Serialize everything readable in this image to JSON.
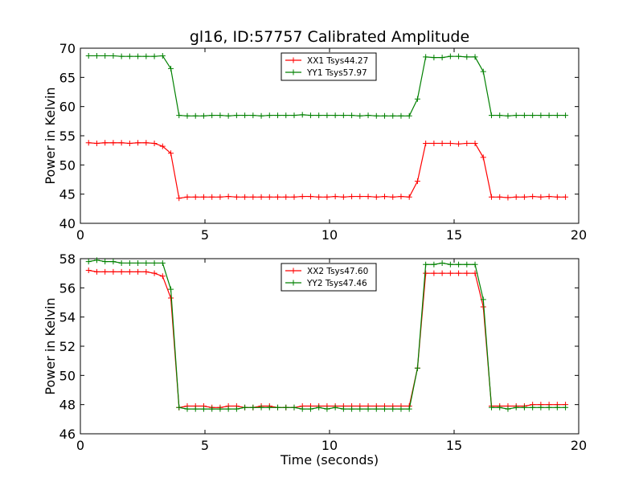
{
  "figure": {
    "title": "gl16, ID:57757 Calibrated Amplitude"
  },
  "colors": {
    "xx": "#ff0000",
    "yy": "#008000",
    "axis": "#000000",
    "background": "#ffffff"
  },
  "chart_data": [
    {
      "type": "line",
      "title": "gl16, ID:57757 Calibrated Amplitude",
      "xlabel": "",
      "ylabel": "Power in Kelvin",
      "xlim": [
        0,
        20
      ],
      "ylim": [
        40,
        70
      ],
      "xticks": [
        "0",
        "5",
        "10",
        "15",
        "20"
      ],
      "yticks": [
        "40",
        "45",
        "50",
        "55",
        "60",
        "65",
        "70"
      ],
      "grid": false,
      "legend_position": "top-center",
      "x": [
        0.33,
        0.66,
        0.99,
        1.32,
        1.65,
        1.98,
        2.31,
        2.64,
        2.97,
        3.3,
        3.63,
        3.96,
        4.29,
        4.62,
        4.95,
        5.28,
        5.61,
        5.94,
        6.27,
        6.6,
        6.93,
        7.26,
        7.59,
        7.92,
        8.25,
        8.58,
        8.91,
        9.24,
        9.57,
        9.9,
        10.23,
        10.56,
        10.89,
        11.22,
        11.55,
        11.88,
        12.21,
        12.54,
        12.87,
        13.2,
        13.53,
        13.86,
        14.19,
        14.52,
        14.85,
        15.18,
        15.51,
        15.84,
        16.17,
        16.5,
        16.83,
        17.16,
        17.49,
        17.82,
        18.15,
        18.48,
        18.81,
        19.14,
        19.47
      ],
      "series": [
        {
          "name": "XX1 Tsys44.27",
          "color": "#ff0000",
          "values": [
            53.8,
            53.7,
            53.8,
            53.8,
            53.8,
            53.7,
            53.8,
            53.8,
            53.7,
            53.2,
            52.0,
            44.3,
            44.5,
            44.5,
            44.5,
            44.5,
            44.5,
            44.6,
            44.5,
            44.5,
            44.5,
            44.5,
            44.5,
            44.5,
            44.5,
            44.5,
            44.6,
            44.6,
            44.5,
            44.5,
            44.6,
            44.5,
            44.6,
            44.6,
            44.6,
            44.5,
            44.6,
            44.5,
            44.6,
            44.5,
            47.2,
            53.7,
            53.7,
            53.7,
            53.7,
            53.6,
            53.7,
            53.7,
            51.3,
            44.5,
            44.5,
            44.4,
            44.5,
            44.5,
            44.6,
            44.5,
            44.6,
            44.5,
            44.5
          ]
        },
        {
          "name": "YY1 Tsys57.97",
          "color": "#008000",
          "values": [
            68.7,
            68.7,
            68.7,
            68.7,
            68.6,
            68.6,
            68.6,
            68.6,
            68.6,
            68.7,
            66.5,
            58.5,
            58.4,
            58.4,
            58.4,
            58.5,
            58.5,
            58.4,
            58.5,
            58.5,
            58.5,
            58.4,
            58.5,
            58.5,
            58.5,
            58.5,
            58.6,
            58.5,
            58.5,
            58.5,
            58.5,
            58.5,
            58.5,
            58.4,
            58.5,
            58.4,
            58.4,
            58.4,
            58.4,
            58.4,
            61.3,
            68.5,
            68.4,
            68.4,
            68.6,
            68.6,
            68.5,
            68.5,
            66.0,
            58.5,
            58.5,
            58.4,
            58.5,
            58.5,
            58.5,
            58.5,
            58.5,
            58.5,
            58.5
          ]
        }
      ]
    },
    {
      "type": "line",
      "title": "",
      "xlabel": "Time (seconds)",
      "ylabel": "Power in Kelvin",
      "xlim": [
        0,
        20
      ],
      "ylim": [
        46,
        58
      ],
      "xticks": [
        "0",
        "5",
        "10",
        "15",
        "20"
      ],
      "yticks": [
        "46",
        "48",
        "50",
        "52",
        "54",
        "56",
        "58"
      ],
      "grid": false,
      "legend_position": "top-center",
      "x": [
        0.33,
        0.66,
        0.99,
        1.32,
        1.65,
        1.98,
        2.31,
        2.64,
        2.97,
        3.3,
        3.63,
        3.96,
        4.29,
        4.62,
        4.95,
        5.28,
        5.61,
        5.94,
        6.27,
        6.6,
        6.93,
        7.26,
        7.59,
        7.92,
        8.25,
        8.58,
        8.91,
        9.24,
        9.57,
        9.9,
        10.23,
        10.56,
        10.89,
        11.22,
        11.55,
        11.88,
        12.21,
        12.54,
        12.87,
        13.2,
        13.53,
        13.86,
        14.19,
        14.52,
        14.85,
        15.18,
        15.51,
        15.84,
        16.17,
        16.5,
        16.83,
        17.16,
        17.49,
        17.82,
        18.15,
        18.48,
        18.81,
        19.14,
        19.47
      ],
      "series": [
        {
          "name": "XX2 Tsys47.60",
          "color": "#ff0000",
          "values": [
            57.2,
            57.1,
            57.1,
            57.1,
            57.1,
            57.1,
            57.1,
            57.1,
            57.0,
            56.8,
            55.3,
            47.8,
            47.9,
            47.9,
            47.9,
            47.8,
            47.8,
            47.9,
            47.9,
            47.8,
            47.8,
            47.9,
            47.9,
            47.8,
            47.8,
            47.8,
            47.9,
            47.9,
            47.9,
            47.9,
            47.9,
            47.9,
            47.9,
            47.9,
            47.9,
            47.9,
            47.9,
            47.9,
            47.9,
            47.9,
            50.5,
            57.0,
            57.0,
            57.0,
            57.0,
            57.0,
            57.0,
            57.0,
            54.7,
            47.9,
            47.9,
            47.9,
            47.9,
            47.9,
            48.0,
            48.0,
            48.0,
            48.0,
            48.0
          ]
        },
        {
          "name": "YY2 Tsys47.46",
          "color": "#008000",
          "values": [
            57.8,
            57.9,
            57.8,
            57.8,
            57.7,
            57.7,
            57.7,
            57.7,
            57.7,
            57.7,
            55.9,
            47.8,
            47.7,
            47.7,
            47.7,
            47.7,
            47.7,
            47.7,
            47.7,
            47.8,
            47.8,
            47.8,
            47.8,
            47.8,
            47.8,
            47.8,
            47.7,
            47.7,
            47.8,
            47.7,
            47.8,
            47.7,
            47.7,
            47.7,
            47.7,
            47.7,
            47.7,
            47.7,
            47.7,
            47.7,
            50.5,
            57.6,
            57.6,
            57.7,
            57.6,
            57.6,
            57.6,
            57.6,
            55.2,
            47.8,
            47.8,
            47.7,
            47.8,
            47.8,
            47.8,
            47.8,
            47.8,
            47.8,
            47.8
          ]
        }
      ]
    }
  ]
}
